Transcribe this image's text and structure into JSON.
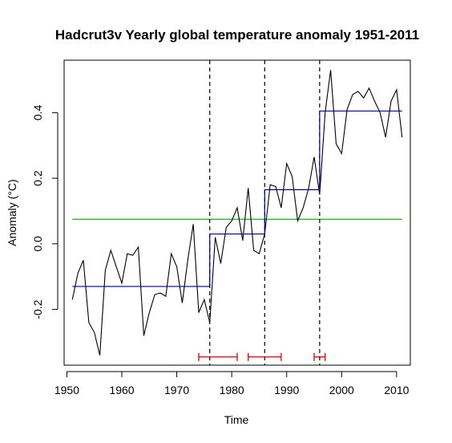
{
  "chart_data": {
    "type": "line",
    "title": "Hadcrut3v Yearly global temperature anomaly 1951-2011",
    "xlabel": "Time",
    "ylabel": "Anomaly (°C)",
    "xlim": [
      1949.5,
      2012.5
    ],
    "ylim": [
      -0.37,
      0.56
    ],
    "x_ticks": [
      1950,
      1960,
      1970,
      1980,
      1990,
      2000,
      2010
    ],
    "y_ticks": [
      -0.2,
      0.0,
      0.2,
      0.4
    ],
    "y_tick_labels": [
      "-0.2",
      "0.0",
      "0.2",
      "0.4"
    ],
    "series": [
      {
        "color": "#000000",
        "x": [
          1951,
          1952,
          1953,
          1954,
          1955,
          1956,
          1957,
          1958,
          1959,
          1960,
          1961,
          1962,
          1963,
          1964,
          1965,
          1966,
          1967,
          1968,
          1969,
          1970,
          1971,
          1972,
          1973,
          1974,
          1975,
          1976,
          1977,
          1978,
          1979,
          1980,
          1981,
          1982,
          1983,
          1984,
          1985,
          1986,
          1987,
          1988,
          1989,
          1990,
          1991,
          1992,
          1993,
          1994,
          1995,
          1996,
          1997,
          1998,
          1999,
          2000,
          2001,
          2002,
          2003,
          2004,
          2005,
          2006,
          2007,
          2008,
          2009,
          2010,
          2011
        ],
        "values": [
          -0.17,
          -0.09,
          -0.05,
          -0.24,
          -0.27,
          -0.34,
          -0.08,
          -0.02,
          -0.07,
          -0.12,
          -0.03,
          -0.035,
          -0.01,
          -0.28,
          -0.21,
          -0.155,
          -0.15,
          -0.16,
          -0.03,
          -0.07,
          -0.18,
          -0.05,
          0.06,
          -0.21,
          -0.17,
          -0.24,
          0.02,
          -0.06,
          0.05,
          0.07,
          0.11,
          0.01,
          0.17,
          -0.02,
          -0.03,
          0.03,
          0.18,
          0.175,
          0.11,
          0.245,
          0.205,
          0.07,
          0.11,
          0.17,
          0.265,
          0.15,
          0.4,
          0.53,
          0.305,
          0.275,
          0.41,
          0.455,
          0.465,
          0.445,
          0.475,
          0.435,
          0.4,
          0.325,
          0.435,
          0.47,
          0.325
        ]
      }
    ],
    "steps": {
      "color": "#00008b",
      "segments": [
        {
          "x_start": 1951,
          "x_end": 1976,
          "value": -0.13
        },
        {
          "x_start": 1976,
          "x_end": 1986,
          "value": 0.03
        },
        {
          "x_start": 1986,
          "x_end": 1996,
          "value": 0.165
        },
        {
          "x_start": 1996,
          "x_end": 2011,
          "value": 0.405
        }
      ]
    },
    "overall_mean": {
      "color": "#00a000",
      "x_start": 1951,
      "x_end": 2011,
      "value": 0.075
    },
    "breakpoints": {
      "style": "dashed",
      "x": [
        1976,
        1986,
        1996
      ]
    },
    "confidence_intervals": {
      "color": "#cc0000",
      "y": -0.345,
      "intervals": [
        [
          1974,
          1981
        ],
        [
          1983,
          1989
        ],
        [
          1995,
          1997
        ]
      ]
    },
    "grid": false,
    "legend": "none"
  }
}
